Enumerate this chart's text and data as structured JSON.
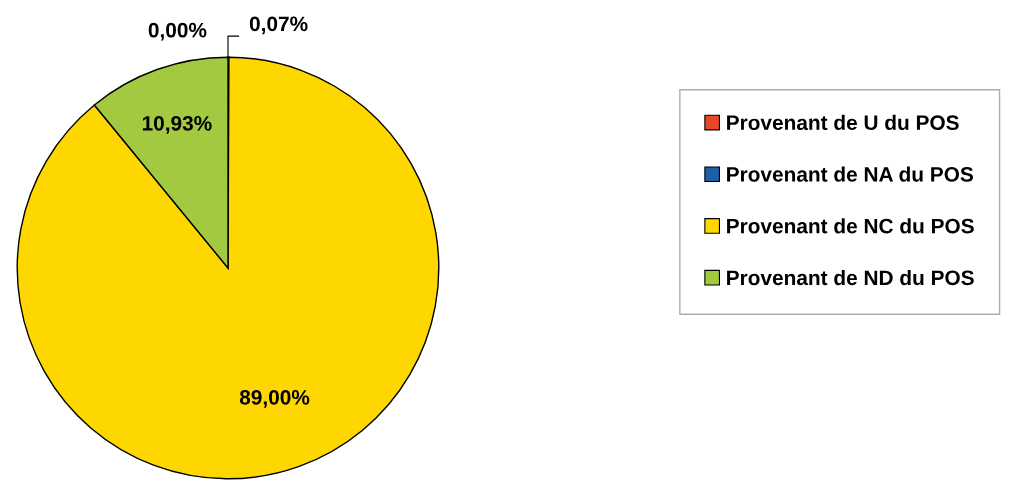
{
  "chart_data": {
    "type": "pie",
    "categories": [
      "Provenant de U du POS",
      "Provenant de NA du POS",
      "Provenant de NC du POS",
      "Provenant de ND du POS"
    ],
    "values": [
      0.0,
      0.07,
      89.0,
      10.93
    ],
    "colors": [
      "#e8462a",
      "#1f5fa8",
      "#ffd700",
      "#a3c940"
    ],
    "value_labels": [
      "0,00%",
      "0,07%",
      "89,00%",
      "10,93%"
    ],
    "legend": "right"
  }
}
